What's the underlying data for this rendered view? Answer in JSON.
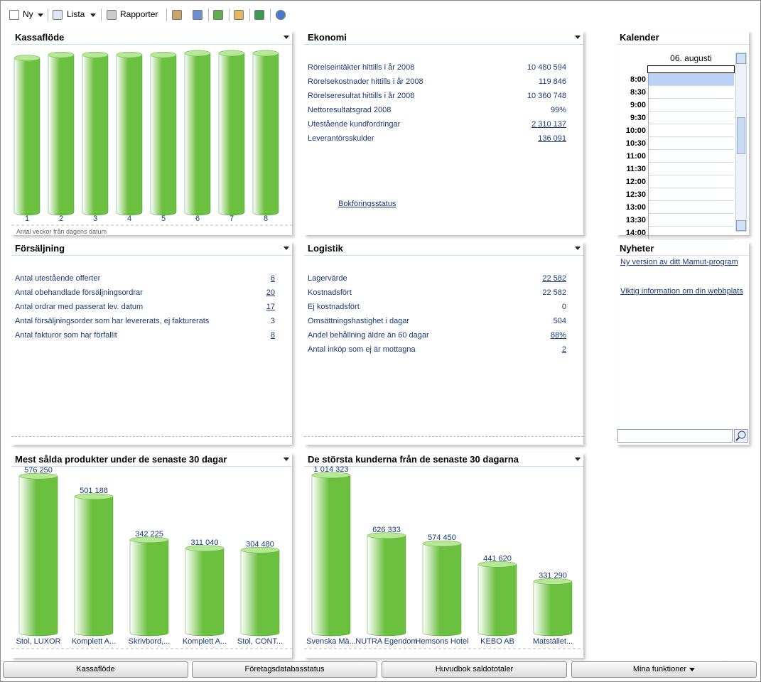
{
  "toolbar": {
    "items": [
      "Ny",
      "Lista",
      "Rapporter"
    ]
  },
  "chart_data": [
    {
      "type": "cylinder",
      "title": "Kassaflöde",
      "categories": [
        "1",
        "2",
        "3",
        "4",
        "5",
        "6",
        "7",
        "8"
      ],
      "values": [
        97,
        99,
        99,
        99,
        99,
        100,
        100,
        100
      ],
      "ylim": [
        0,
        100
      ],
      "x_label": "Antal veckor från dagens datum",
      "color": "#6cc040"
    },
    {
      "type": "cylinder",
      "title": "Mest sålda produkter under de senaste 30 dagar",
      "categories": [
        "Stol, LUXOR",
        "Komplett A...",
        "Skrivbord,...",
        "Komplett A...",
        "Stol, CONT..."
      ],
      "values": [
        576250,
        501188,
        342225,
        311040,
        304480
      ],
      "value_labels": [
        "576 250",
        "501 188",
        "342 225",
        "311 040",
        "304 480"
      ],
      "ylim": [
        0,
        600000
      ],
      "color": "#6cc040"
    },
    {
      "type": "cylinder",
      "title": "De största kunderna från de senaste 30 dagarna",
      "categories": [
        "Svenska Mä...",
        "NUTRA Egendom",
        "Hemsons Hotel",
        "KEBO AB",
        "Matstället..."
      ],
      "values": [
        1014323,
        626333,
        574450,
        441620,
        331290
      ],
      "value_labels": [
        "1 014 323",
        "626 333",
        "574 450",
        "441 620",
        "331 290"
      ],
      "ylim": [
        0,
        1050000
      ],
      "color": "#6cc040"
    }
  ],
  "ekonomi": {
    "title": "Ekonomi",
    "rows": [
      {
        "label": "Rörelseintäkter hittills i år 2008",
        "value": "10 480 594",
        "link": false
      },
      {
        "label": "Rörelsekostnader hittills i år 2008",
        "value": "119 846",
        "link": false
      },
      {
        "label": "Rörelseresultat hittills i år 2008",
        "value": "10 360 748",
        "link": false
      },
      {
        "label": "Nettoresultatsgrad 2008",
        "value": "99%",
        "link": false
      },
      {
        "label": "Utestående kundfordringar",
        "value": "2 310 137",
        "link": true
      },
      {
        "label": "Leverantörsskulder",
        "value": "136 091",
        "link": true
      }
    ],
    "status_link": "Bokföringsstatus"
  },
  "forsaljning": {
    "title": "Försäljning",
    "rows": [
      {
        "label": "Antal utestående offerter",
        "value": "6",
        "link": true
      },
      {
        "label": "Antal obehandlade försäljningsordrar",
        "value": "20",
        "link": true
      },
      {
        "label": "Antal ordrar med passerat lev. datum",
        "value": "17",
        "link": true
      },
      {
        "label": "Antal försäljningsorder som har levererats, ej fakturerats",
        "value": "3",
        "link": false
      },
      {
        "label": "Antal fakturor som har förfallit",
        "value": "8",
        "link": true
      }
    ]
  },
  "logistik": {
    "title": "Logistik",
    "rows": [
      {
        "label": "Lagervärde",
        "value": "22 582",
        "link": true
      },
      {
        "label": "Kostnadsfört",
        "value": "22 582",
        "link": false
      },
      {
        "label": "Ej kostnadsfört",
        "value": "0",
        "link": false
      },
      {
        "label": "Omsättningshastighet i dagar",
        "value": "504",
        "link": false
      },
      {
        "label": "Andel behållning äldre än 60 dagar",
        "value": "88%",
        "link": true
      },
      {
        "label": "Antal inköp som ej är mottagna",
        "value": "2",
        "link": true
      }
    ]
  },
  "kalender": {
    "title": "Kalender",
    "date": "06. augusti",
    "times": [
      "8:00",
      "8:30",
      "9:00",
      "9:30",
      "10:00",
      "10:30",
      "11:00",
      "11:30",
      "12:00",
      "12:30",
      "13:00",
      "13:30",
      "14:00"
    ]
  },
  "nyheter": {
    "title": "Nyheter",
    "items": [
      "Ny version av ditt Mamut-program",
      "Viktig information om din webbplats"
    ]
  },
  "buttons": [
    "Kassaflöde",
    "Företagsdatabasstatus",
    "Huvudbok saldototaler",
    "Mina funktioner"
  ]
}
